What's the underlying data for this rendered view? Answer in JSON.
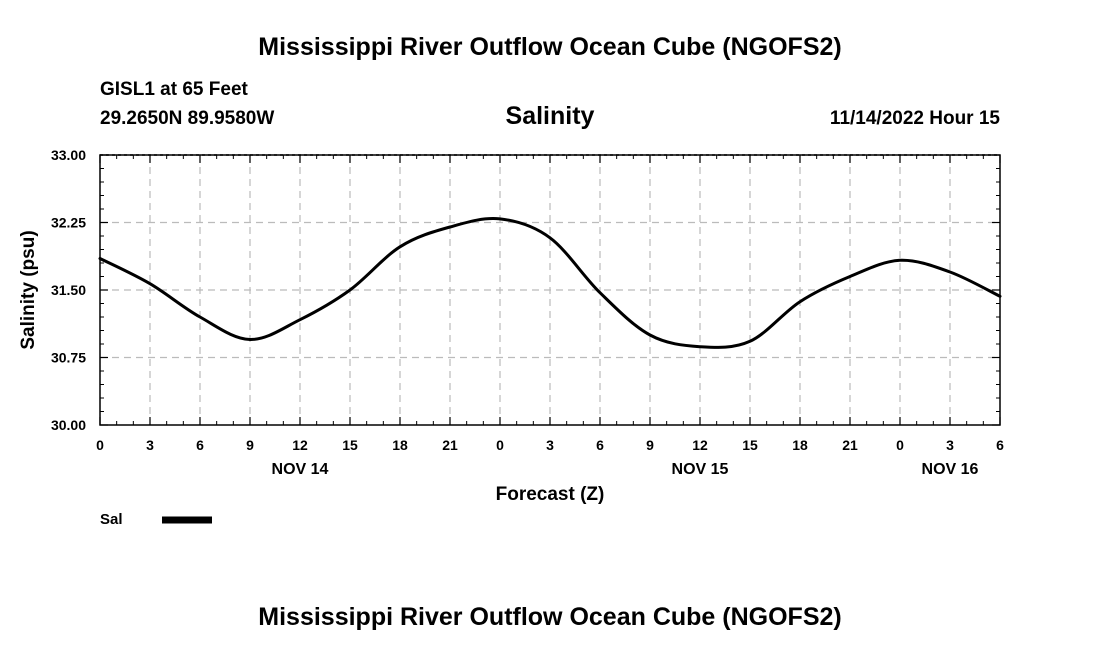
{
  "header": {
    "title": "Mississippi River Outflow Ocean Cube (NGOFS2)",
    "station": "GISL1 at 65 Feet",
    "location": "29.2650N  89.9580W",
    "timestamp": "11/14/2022 Hour 15"
  },
  "footer": {
    "title": "Mississippi River Outflow Ocean Cube (NGOFS2)"
  },
  "chart_data": {
    "type": "line",
    "title": "Salinity",
    "xlabel": "Forecast (Z)",
    "ylabel": "Salinity (psu)",
    "ylim": [
      30.0,
      33.0
    ],
    "xlim": [
      0,
      54
    ],
    "y_ticks": [
      "30.00",
      "30.75",
      "31.50",
      "32.25",
      "33.00"
    ],
    "x_tick_labels": [
      "0",
      "3",
      "6",
      "9",
      "12",
      "15",
      "18",
      "21",
      "0",
      "3",
      "6",
      "9",
      "12",
      "15",
      "18",
      "21",
      "0",
      "3",
      "6"
    ],
    "date_labels": [
      {
        "label": "NOV 14",
        "hour": 12
      },
      {
        "label": "NOV 15",
        "hour": 36
      },
      {
        "label": "NOV 16",
        "hour": 51
      }
    ],
    "grid": true,
    "line_color": "#000000",
    "series": [
      {
        "name": "Sal",
        "x": [
          0,
          3,
          6,
          9,
          12,
          15,
          18,
          21,
          24,
          27,
          30,
          33,
          36,
          39,
          42,
          45,
          48,
          51,
          54
        ],
        "values": [
          31.85,
          31.57,
          31.2,
          30.95,
          31.17,
          31.5,
          31.98,
          32.2,
          32.29,
          32.08,
          31.47,
          31.0,
          30.87,
          30.93,
          31.37,
          31.65,
          31.83,
          31.7,
          31.43
        ]
      }
    ],
    "legend": [
      {
        "label": "Sal"
      }
    ]
  }
}
